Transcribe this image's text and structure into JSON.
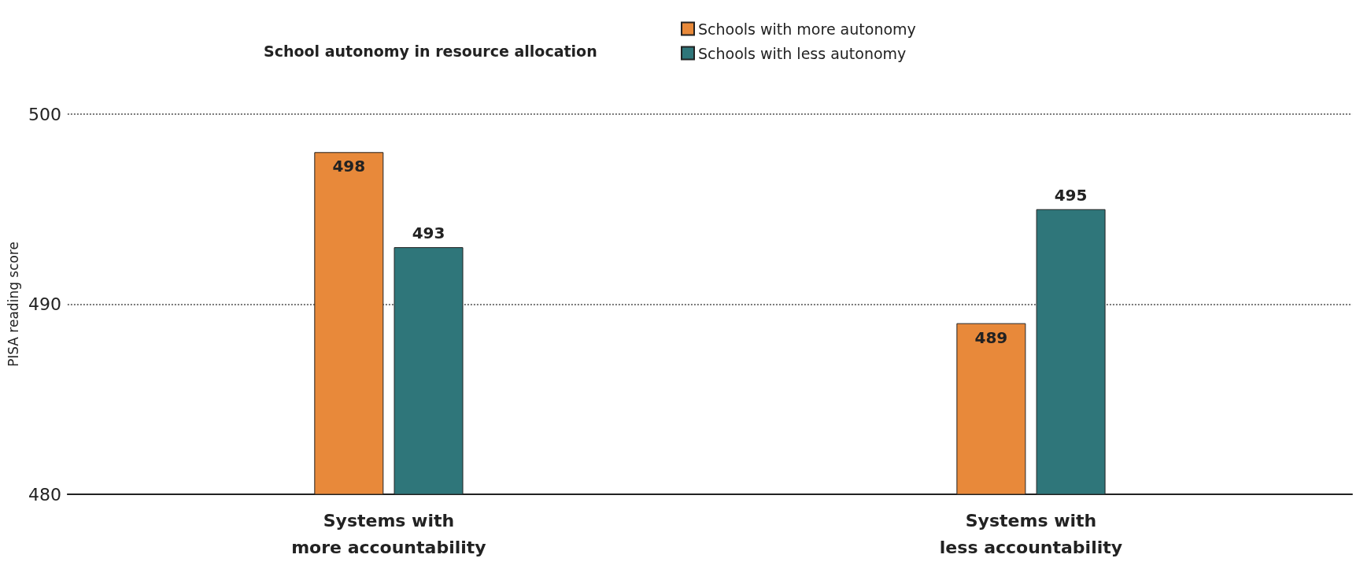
{
  "chart_data": {
    "type": "bar",
    "legend_title": "School autonomy in resource allocation",
    "ylabel": "PISA reading score",
    "categories": [
      "Systems with\nmore accountability",
      "Systems with\nless accountability"
    ],
    "series": [
      {
        "name": "Schools with more autonomy",
        "color": "#e8893a",
        "values": [
          498,
          489
        ]
      },
      {
        "name": "Schools with less autonomy",
        "color": "#2f767a",
        "values": [
          493,
          495
        ]
      }
    ],
    "ylim": [
      480,
      500
    ],
    "yticks": [
      480,
      490,
      500
    ],
    "grid": "y",
    "legend": "top",
    "data_labels": true
  }
}
